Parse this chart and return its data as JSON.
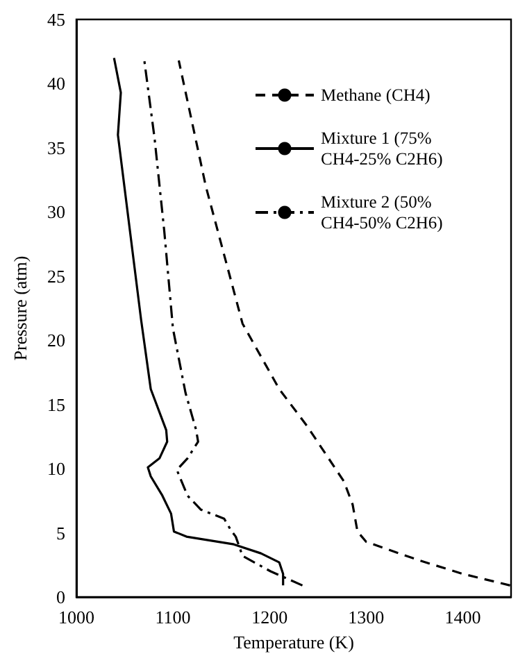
{
  "chart_data": {
    "type": "line",
    "xlabel": "Temperature (K)",
    "ylabel": "Pressure (atm)",
    "xlim": [
      1000,
      1450
    ],
    "xticks": [
      1000,
      1100,
      1200,
      1300,
      1400
    ],
    "ylim": [
      0,
      45
    ],
    "yticks": [
      0,
      5,
      10,
      15,
      20,
      25,
      30,
      35,
      40,
      45
    ],
    "grid": false,
    "legend": "top right",
    "marker": "none",
    "series": [
      {
        "name": "Methane (CH4)",
        "color": "#000000",
        "line_style": "dashed",
        "x": [
          1449,
          1400,
          1353,
          1300,
          1291,
          1286,
          1277,
          1239,
          1210,
          1172,
          1134,
          1106
        ],
        "values": [
          0.9,
          1.8,
          2.9,
          4.3,
          5.1,
          7.2,
          9,
          13.3,
          16.2,
          21.3,
          32,
          41.8
        ]
      },
      {
        "name": "Mixture 1 (75% CH4-25% C2H6)",
        "color": "#000000",
        "line_style": "solid",
        "x": [
          1214,
          1214,
          1210,
          1191,
          1163,
          1114,
          1101,
          1098,
          1089,
          1077,
          1074,
          1086,
          1094,
          1093,
          1077,
          1067,
          1043,
          1046,
          1039
        ],
        "values": [
          0.9,
          1.8,
          2.7,
          3.4,
          4.1,
          4.7,
          5.1,
          6.5,
          7.9,
          9.4,
          10.1,
          10.8,
          12.1,
          13,
          16.2,
          21.6,
          36,
          39.3,
          42
        ]
      },
      {
        "name": "Mixture 2 (50% CH4-50% C2H6)",
        "color": "#000000",
        "line_style": "dashdot",
        "x": [
          1234,
          1201,
          1172,
          1165,
          1160,
          1153,
          1129,
          1115,
          1104,
          1115,
          1126,
          1124,
          1113,
          1100,
          1091,
          1081,
          1070
        ],
        "values": [
          0.9,
          2,
          3.2,
          4.7,
          5.2,
          6.1,
          6.8,
          7.9,
          9.9,
          10.8,
          12.1,
          13,
          15.9,
          20.9,
          28.5,
          35.7,
          42
        ]
      }
    ]
  }
}
